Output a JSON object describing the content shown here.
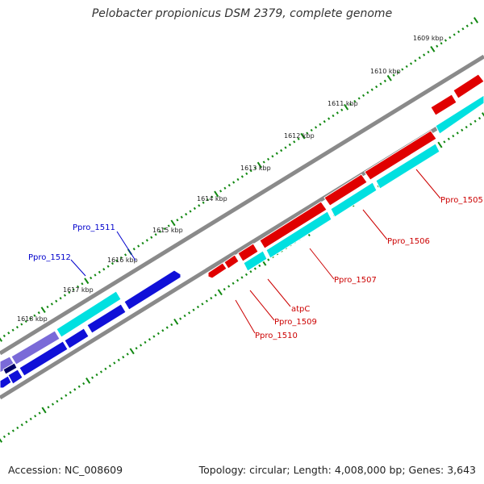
{
  "title": "Pelobacter propionicus DSM 2379, complete genome",
  "footer": {
    "accession": "Accession: NC_008609",
    "summary": "Topology: circular; Length: 4,008,000 bp; Genes: 3,643"
  },
  "colors": {
    "backbone": "#8a8a8a",
    "forward_strand": "#e00000",
    "reverse_strand": "#1010d8",
    "cds_forward": "#00e0e0",
    "cds_reverse": "#00e0e0",
    "rna": "#7a6ad8",
    "ticks": "#118811",
    "label_forward": "#cc0000",
    "label_reverse": "#0000cc"
  },
  "scale": {
    "unit": "kbp",
    "major_ticks": [
      "1609 kbp",
      "1610 kbp",
      "1611 kbp",
      "1612 kbp",
      "1613 kbp",
      "1614 kbp",
      "1615 kbp",
      "1616 kbp",
      "1617 kbp",
      "1618 kbp"
    ]
  },
  "gene_labels": {
    "forward": [
      "Ppro_1505",
      "Ppro_1506",
      "Ppro_1507",
      "atpC",
      "Ppro_1509",
      "Ppro_1510"
    ],
    "reverse": [
      "Ppro_1511",
      "Ppro_1512"
    ]
  }
}
